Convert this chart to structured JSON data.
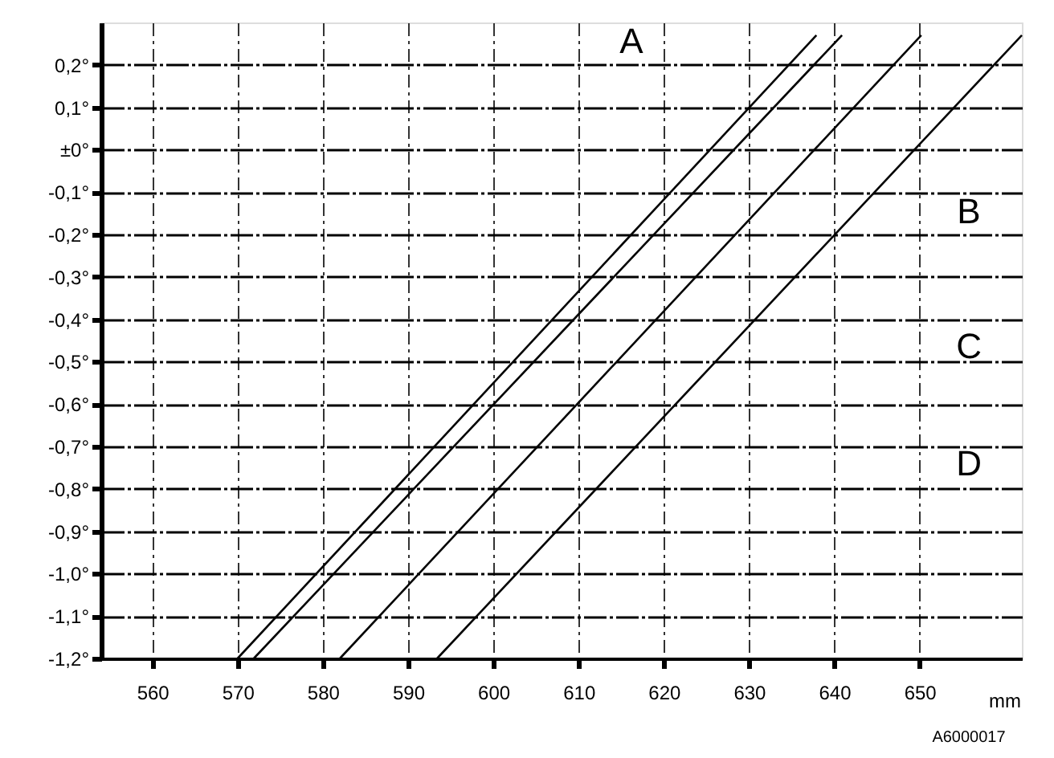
{
  "chart_data": {
    "type": "line",
    "series": [
      {
        "color": "#000000",
        "x": [
          570,
          637.9
        ],
        "values": [
          -1.2,
          0.27
        ]
      },
      {
        "color": "#000000",
        "x": [
          571.9,
          640.9
        ],
        "values": [
          -1.2,
          0.27
        ]
      },
      {
        "color": "#000000",
        "x": [
          582,
          650.2
        ],
        "values": [
          -1.2,
          0.27
        ]
      },
      {
        "color": "#000000",
        "x": [
          593.4,
          662
        ],
        "values": [
          -1.2,
          0.27
        ]
      }
    ],
    "xlabel": "mm",
    "xlim": [
      554,
      662
    ],
    "ylim": [
      -1.2,
      0.3
    ],
    "xticks": [
      560,
      570,
      580,
      590,
      600,
      610,
      620,
      630,
      640,
      650
    ],
    "yticks": [
      {
        "value": 0.2,
        "label": "0,2°"
      },
      {
        "value": 0.1,
        "label": "0,1°"
      },
      {
        "value": 0,
        "label": "±0°"
      },
      {
        "value": -0.1,
        "label": "-0,1°"
      },
      {
        "value": -0.2,
        "label": "-0,2°"
      },
      {
        "value": -0.3,
        "label": "-0,3°"
      },
      {
        "value": -0.4,
        "label": "-0,4°"
      },
      {
        "value": -0.5,
        "label": "-0,5°"
      },
      {
        "value": -0.6,
        "label": "-0,6°"
      },
      {
        "value": -0.7,
        "label": "-0,7°"
      },
      {
        "value": -0.8,
        "label": "-0,8°"
      },
      {
        "value": -0.9,
        "label": "-0,9°"
      },
      {
        "value": -1.0,
        "label": "-1,0°"
      },
      {
        "value": -1.1,
        "label": "-1,1°"
      },
      {
        "value": -1.2,
        "label": "-1,2°"
      }
    ],
    "grid": true,
    "marker": "none",
    "line_style": "solid",
    "annotations": [
      "A",
      "B",
      "C",
      "D",
      "A6000017"
    ]
  }
}
